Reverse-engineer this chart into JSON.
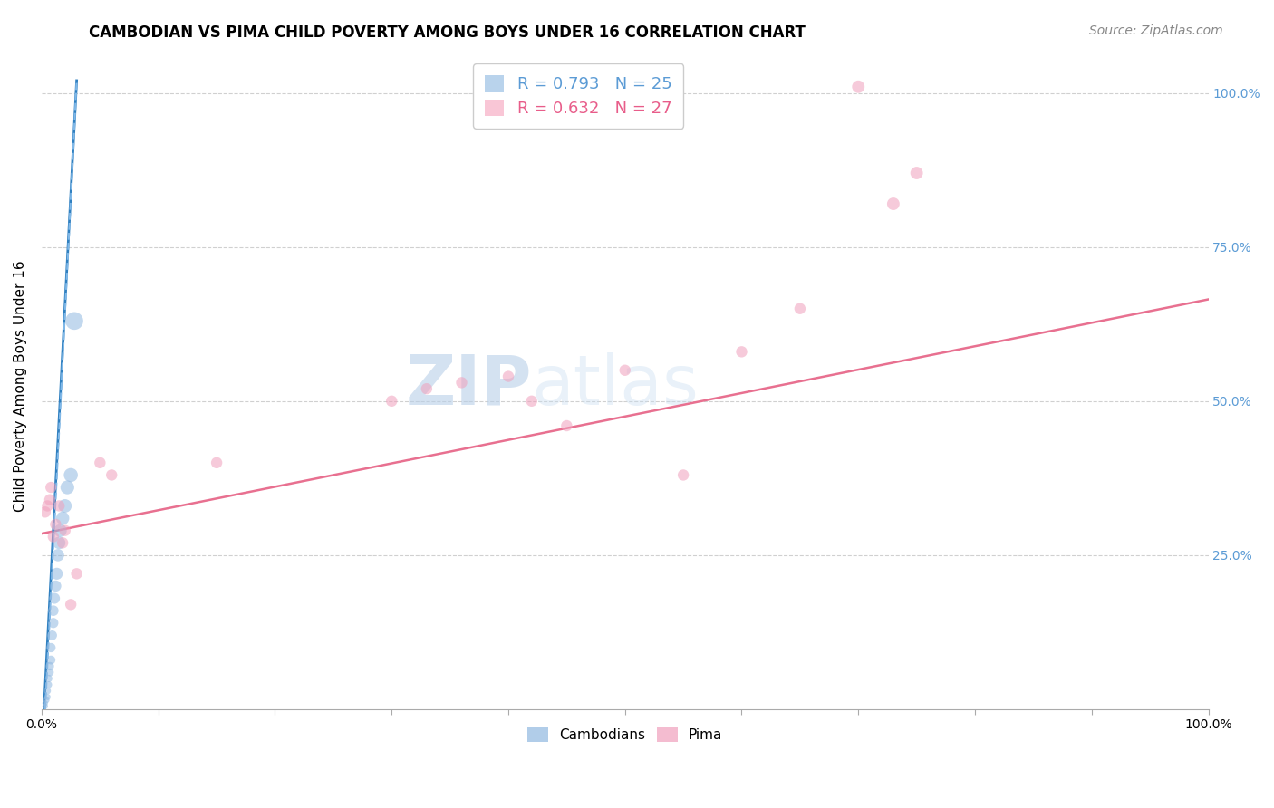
{
  "title": "CAMBODIAN VS PIMA CHILD POVERTY AMONG BOYS UNDER 16 CORRELATION CHART",
  "source": "Source: ZipAtlas.com",
  "ylabel": "Child Poverty Among Boys Under 16",
  "watermark_zip": "ZIP",
  "watermark_atlas": "atlas",
  "xlim": [
    0.0,
    1.0
  ],
  "ylim": [
    0.0,
    1.05
  ],
  "ytick_positions": [
    0.25,
    0.5,
    0.75,
    1.0
  ],
  "ytick_labels": [
    "25.0%",
    "50.0%",
    "75.0%",
    "100.0%"
  ],
  "legend_entries": [
    {
      "label": "R = 0.793   N = 25",
      "color": "#a8c8e8"
    },
    {
      "label": "R = 0.632   N = 27",
      "color": "#f8b8cc"
    }
  ],
  "cambodian_scatter": {
    "color": "#90b8e0",
    "alpha": 0.55,
    "points": [
      [
        0.003,
        0.005
      ],
      [
        0.003,
        0.01
      ],
      [
        0.004,
        0.015
      ],
      [
        0.005,
        0.02
      ],
      [
        0.005,
        0.03
      ],
      [
        0.006,
        0.04
      ],
      [
        0.006,
        0.05
      ],
      [
        0.007,
        0.06
      ],
      [
        0.007,
        0.07
      ],
      [
        0.008,
        0.08
      ],
      [
        0.008,
        0.1
      ],
      [
        0.009,
        0.12
      ],
      [
        0.01,
        0.14
      ],
      [
        0.01,
        0.16
      ],
      [
        0.011,
        0.18
      ],
      [
        0.012,
        0.2
      ],
      [
        0.013,
        0.22
      ],
      [
        0.014,
        0.25
      ],
      [
        0.015,
        0.27
      ],
      [
        0.016,
        0.29
      ],
      [
        0.018,
        0.31
      ],
      [
        0.02,
        0.33
      ],
      [
        0.022,
        0.36
      ],
      [
        0.025,
        0.38
      ],
      [
        0.028,
        0.63
      ]
    ],
    "sizes": [
      20,
      20,
      25,
      25,
      30,
      30,
      35,
      40,
      45,
      50,
      55,
      60,
      65,
      70,
      75,
      80,
      90,
      95,
      100,
      105,
      110,
      115,
      120,
      125,
      200
    ]
  },
  "pima_scatter": {
    "color": "#f0a0bc",
    "alpha": 0.55,
    "points": [
      [
        0.003,
        0.32
      ],
      [
        0.005,
        0.33
      ],
      [
        0.007,
        0.34
      ],
      [
        0.008,
        0.36
      ],
      [
        0.01,
        0.28
      ],
      [
        0.012,
        0.3
      ],
      [
        0.015,
        0.33
      ],
      [
        0.018,
        0.27
      ],
      [
        0.02,
        0.29
      ],
      [
        0.025,
        0.17
      ],
      [
        0.03,
        0.22
      ],
      [
        0.05,
        0.4
      ],
      [
        0.06,
        0.38
      ],
      [
        0.15,
        0.4
      ],
      [
        0.3,
        0.5
      ],
      [
        0.33,
        0.52
      ],
      [
        0.36,
        0.53
      ],
      [
        0.4,
        0.54
      ],
      [
        0.42,
        0.5
      ],
      [
        0.45,
        0.46
      ],
      [
        0.5,
        0.55
      ],
      [
        0.55,
        0.38
      ],
      [
        0.6,
        0.58
      ],
      [
        0.65,
        0.65
      ],
      [
        0.7,
        1.01
      ],
      [
        0.73,
        0.82
      ],
      [
        0.75,
        0.87
      ]
    ],
    "sizes": [
      80,
      80,
      80,
      80,
      80,
      80,
      80,
      80,
      80,
      80,
      80,
      80,
      80,
      80,
      80,
      80,
      80,
      80,
      80,
      80,
      80,
      80,
      80,
      80,
      100,
      100,
      100
    ]
  },
  "cambodian_line": {
    "color": "#3080c0",
    "x": [
      0.002,
      0.03
    ],
    "y": [
      0.0,
      1.02
    ]
  },
  "cambodian_line_dashed": {
    "color": "#80b8e8",
    "x": [
      0.003,
      0.03
    ],
    "y": [
      0.0,
      1.02
    ]
  },
  "pima_line": {
    "color": "#e87090",
    "x": [
      0.0,
      1.0
    ],
    "y": [
      0.285,
      0.665
    ]
  },
  "grid_color": "#d0d0d0",
  "background_color": "#ffffff",
  "title_fontsize": 12,
  "label_fontsize": 11,
  "tick_fontsize": 10,
  "legend_fontsize": 13,
  "source_fontsize": 10
}
